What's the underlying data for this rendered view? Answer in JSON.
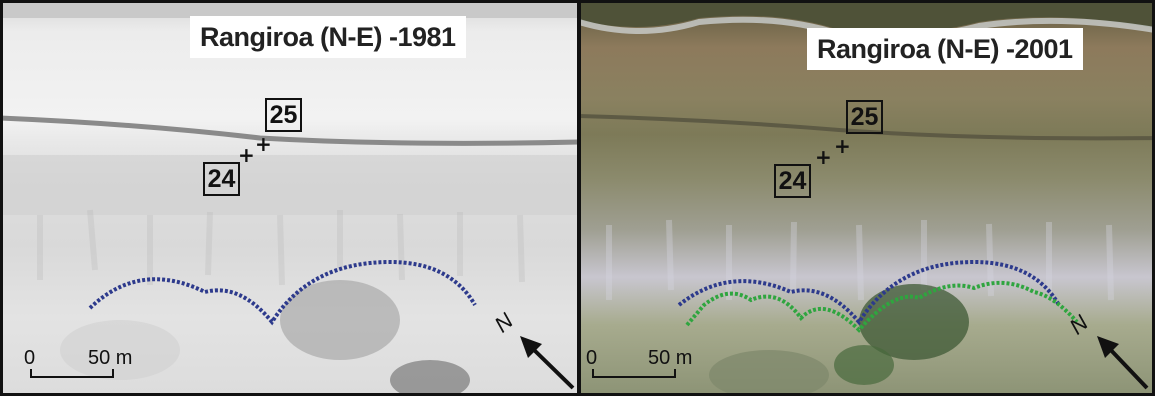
{
  "panels": [
    {
      "title": "Rangiroa (N-E) -1981",
      "markers": [
        "25",
        "24"
      ],
      "scale": {
        "zero": "0",
        "distance": "50 m"
      },
      "north": "N",
      "imagery": "black-and-white aerial photograph",
      "line_colors": [
        "#2d3a8c"
      ]
    },
    {
      "title": "Rangiroa (N-E) -2001",
      "markers": [
        "25",
        "24"
      ],
      "scale": {
        "zero": "0",
        "distance": "50 m"
      },
      "north": "N",
      "imagery": "colour satellite image",
      "line_colors": [
        "#2d3a8c",
        "#2fa53f"
      ]
    }
  ],
  "colors": {
    "line_1981": "#2d3a8c",
    "line_2001": "#2fa53f",
    "frame": "#111111"
  }
}
